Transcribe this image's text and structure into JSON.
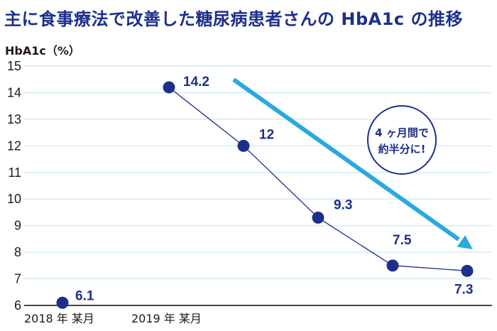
{
  "chart_data": {
    "type": "line",
    "title": "主に食事療法で改善した糖尿病患者さんの HbA1c の推移",
    "ylabel": "HbA1c（%）",
    "xlabel": "",
    "ylim": [
      6,
      15
    ],
    "yticks": [
      "15",
      "14",
      "13",
      "12",
      "11",
      "10",
      "9",
      "8",
      "7",
      "6"
    ],
    "xtick_labels": [
      "2018 年 某月",
      "2019 年 某月"
    ],
    "grid": true,
    "series": [
      {
        "name": "HbA1c",
        "points": [
          {
            "label": "6.1",
            "value": 6.1,
            "x": 0
          },
          {
            "label": "14.2",
            "value": 14.2,
            "x": 1
          },
          {
            "label": "12",
            "value": 12,
            "x": 1.7
          },
          {
            "label": "9.3",
            "value": 9.3,
            "x": 2.4
          },
          {
            "label": "7.5",
            "value": 7.5,
            "x": 3.1
          },
          {
            "label": "7.3",
            "value": 7.3,
            "x": 3.8
          }
        ]
      }
    ],
    "annotation": {
      "line1": "4 ヶ月間で",
      "line2": "約半分に!"
    },
    "colors": {
      "series": "#1d2f8c",
      "arrow": "#2aa8e0",
      "grid": "#d4ecf8",
      "axis": "#4d4346"
    }
  }
}
